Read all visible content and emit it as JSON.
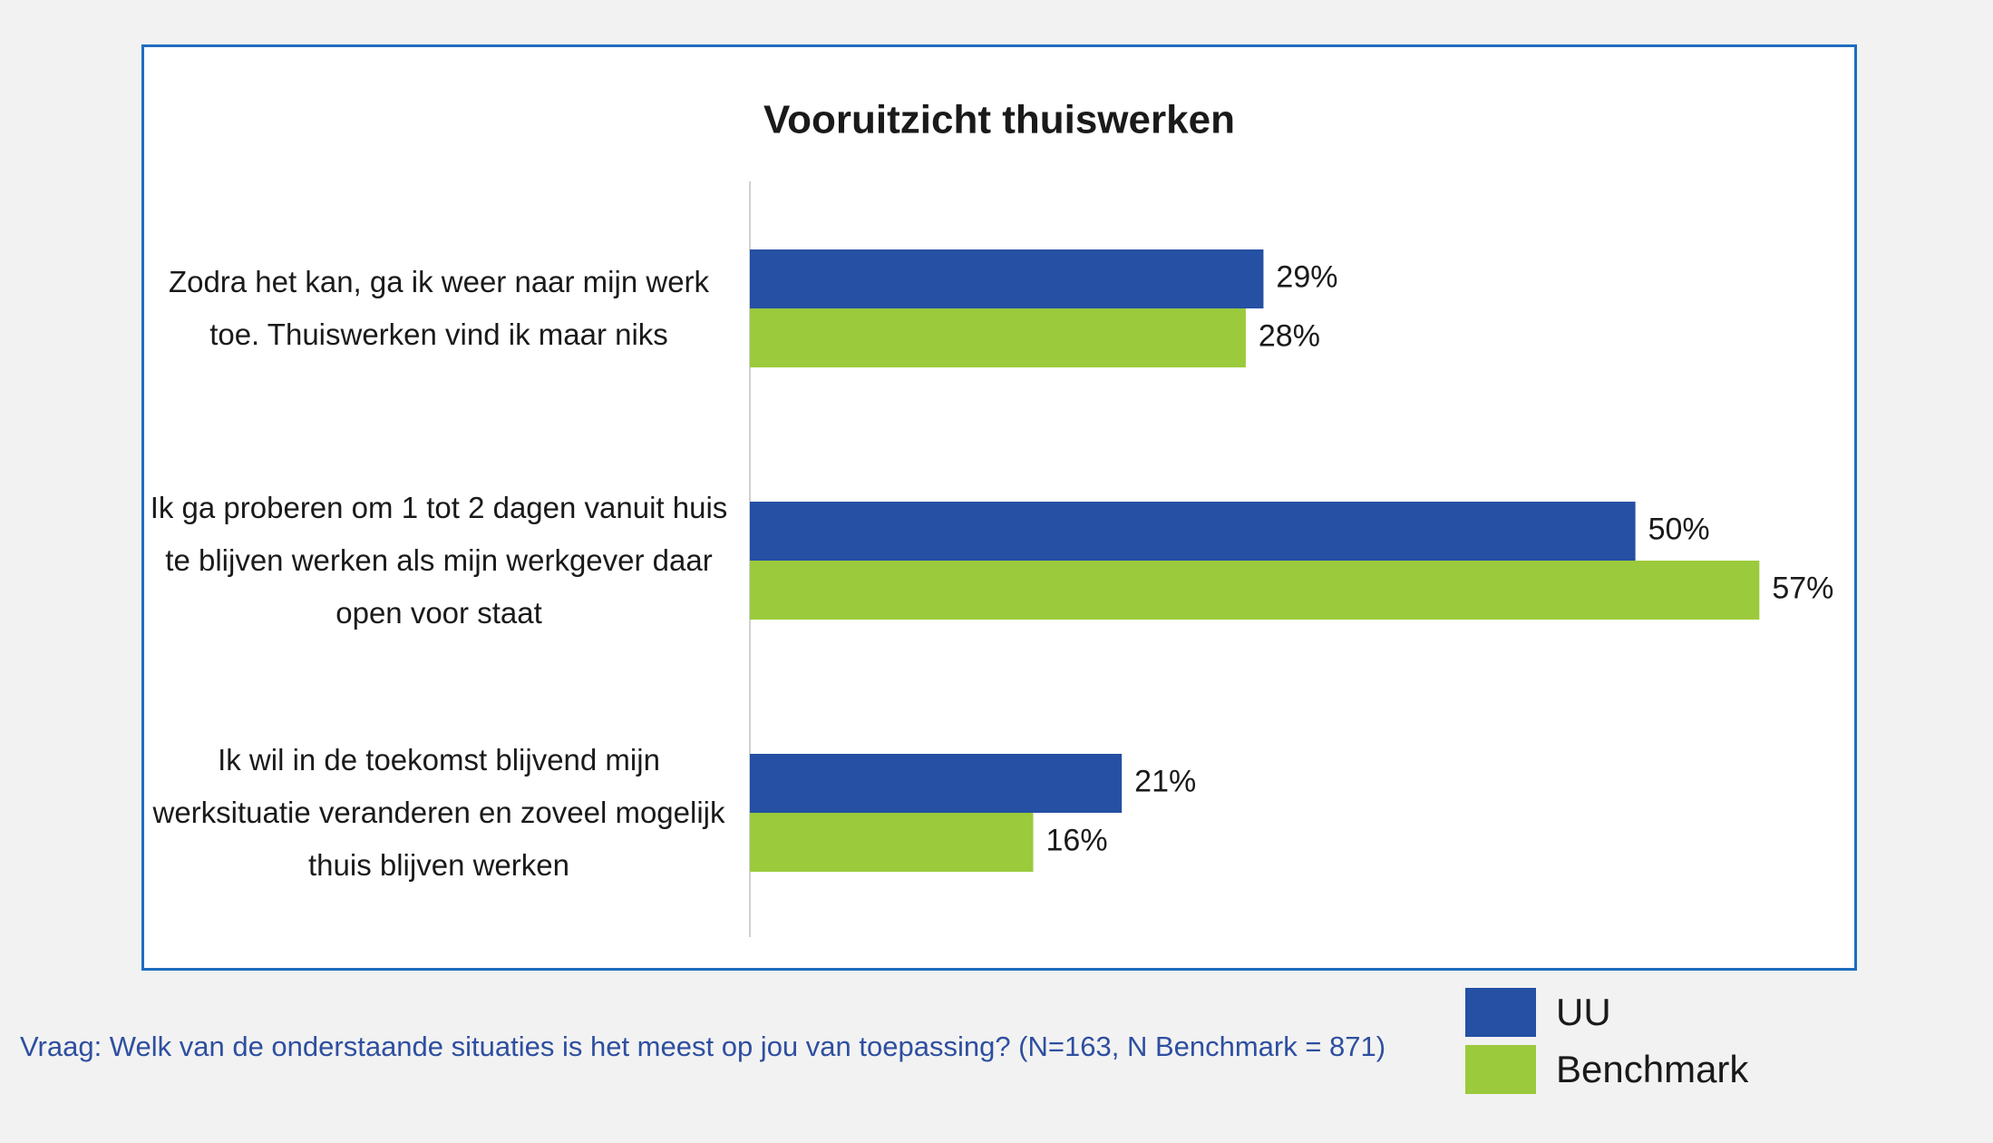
{
  "chart_data": {
    "type": "hbar",
    "title": "Vooruitzicht thuiswerken",
    "categories": [
      "Zodra het kan, ga ik weer naar mijn werk toe. Thuiswerken vind ik maar niks",
      "Ik ga proberen om 1 tot 2 dagen vanuit huis te blijven werken als mijn werkgever daar open voor staat",
      "Ik wil in de toekomst blijvend mijn werksituatie veranderen en zoveel mogelijk thuis blijven werken"
    ],
    "series": [
      {
        "name": "UU",
        "color": "#2550a3",
        "values": [
          29,
          50,
          21
        ],
        "value_labels": [
          "29%",
          "50%",
          "21%"
        ]
      },
      {
        "name": "Benchmark",
        "color": "#9bca3c",
        "values": [
          28,
          57,
          16
        ],
        "value_labels": [
          "28%",
          "57%",
          "16%"
        ]
      }
    ],
    "xlim": [
      0,
      62
    ],
    "legend": "bottom-right",
    "footnote": "Vraag: Welk van de onderstaande situaties is het meest op jou van toepassing? (N=163, N Benchmark = 871)"
  }
}
